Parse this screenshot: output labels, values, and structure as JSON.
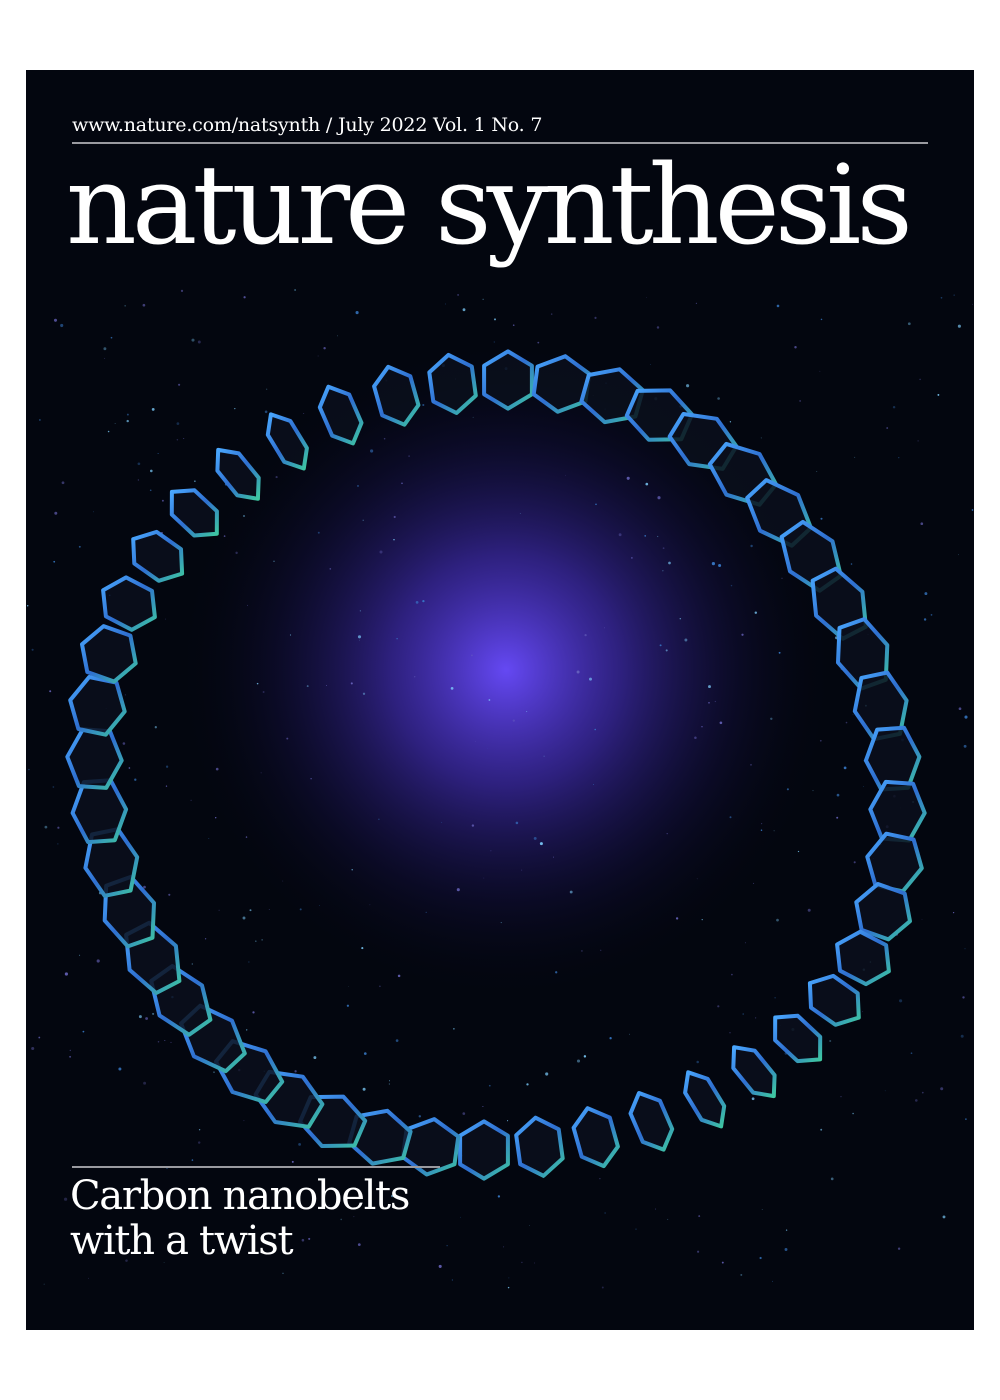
{
  "cover": {
    "issue_line": "www.nature.com/natsynth / July 2022 Vol. 1 No. 7",
    "masthead": "nature synthesis",
    "headline_line1": "Carbon nanobelts",
    "headline_line2": "with a twist",
    "colors": {
      "background": "#03060f",
      "glow": "#5a3cf0",
      "ring_edge": "#3a8fd8",
      "ring_highlight": "#3fc9a0",
      "text": "#ffffff"
    },
    "artwork": "twisted-carbon-nanobelt-ring"
  }
}
